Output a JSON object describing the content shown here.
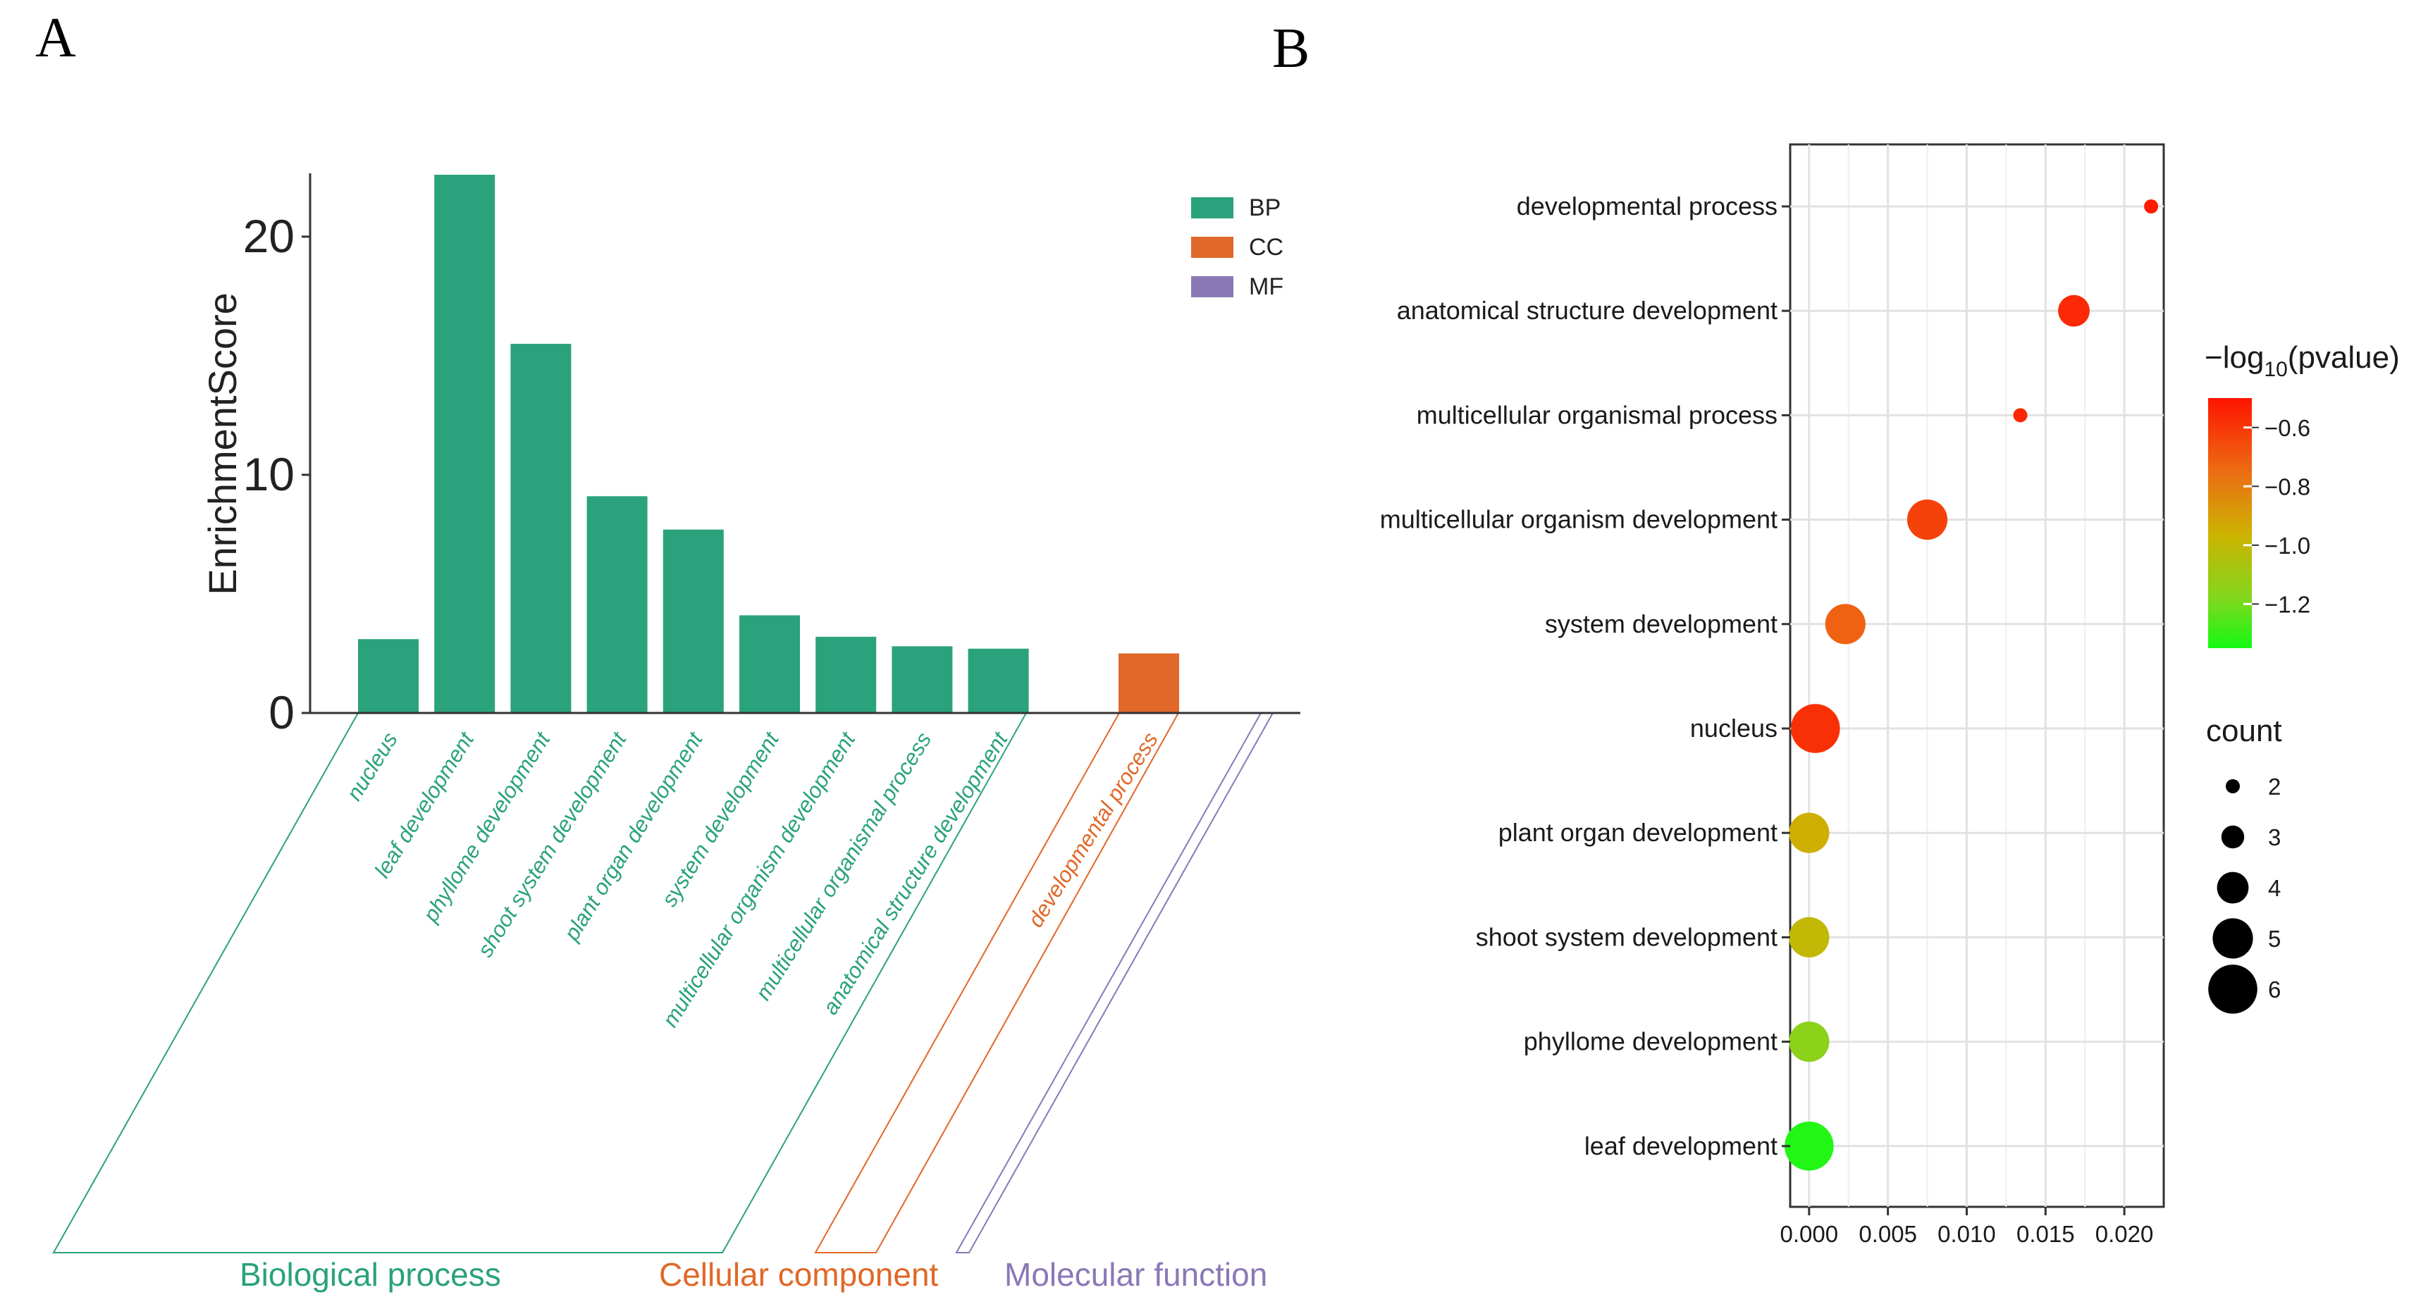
{
  "panels": {
    "a_letter": "A",
    "b_letter": "B"
  },
  "colors": {
    "BP": "#2aa27b",
    "CC": "#e06828",
    "MF": "#8a78b6",
    "axis": "#333333",
    "grid": "#e5e5e5"
  },
  "chart_a": {
    "type": "bar",
    "ylabel": "EnrichmentScore",
    "ylim": [
      0,
      22.6
    ],
    "yticks": [
      "0",
      "10",
      "20"
    ],
    "yticks_values": [
      0,
      10,
      20
    ],
    "legend": [
      {
        "key": "BP",
        "label": "BP"
      },
      {
        "key": "CC",
        "label": "CC"
      },
      {
        "key": "MF",
        "label": "MF"
      }
    ],
    "bars": [
      {
        "label": "nucleus",
        "value": 3.1,
        "group": "BP"
      },
      {
        "label": "leaf development",
        "value": 22.6,
        "group": "BP"
      },
      {
        "label": "phyllome development",
        "value": 15.5,
        "group": "BP"
      },
      {
        "label": "shoot system development",
        "value": 9.1,
        "group": "BP"
      },
      {
        "label": "plant organ development",
        "value": 7.7,
        "group": "BP"
      },
      {
        "label": "system development",
        "value": 4.1,
        "group": "BP"
      },
      {
        "label": "multicellular organism development",
        "value": 3.2,
        "group": "BP"
      },
      {
        "label": "multicellular organismal process",
        "value": 2.8,
        "group": "BP"
      },
      {
        "label": "anatomical structure development",
        "value": 2.7,
        "group": "BP"
      },
      {
        "label": "developmental process",
        "value": 2.5,
        "group": "CC"
      }
    ],
    "groups": [
      {
        "key": "BP",
        "label": "Biological process"
      },
      {
        "key": "CC",
        "label": "Cellular component"
      },
      {
        "key": "MF",
        "label": "Molecular function"
      }
    ]
  },
  "chart_b": {
    "type": "scatter",
    "xlim": [
      -0.0012,
      0.0225
    ],
    "xticks": [
      "0.000",
      "0.005",
      "0.010",
      "0.015",
      "0.020"
    ],
    "xticks_values": [
      0.0,
      0.005,
      0.01,
      0.015,
      0.02
    ],
    "color_legend_title_main": "−log",
    "color_legend_title_sub": "10",
    "color_legend_title_tail": "(pvalue)",
    "color_range": [
      -1.35,
      -0.5
    ],
    "color_ticks": [
      "−0.6",
      "−0.8",
      "−1.0",
      "−1.2"
    ],
    "color_ticks_values": [
      -0.6,
      -0.8,
      -1.0,
      -1.2
    ],
    "size_legend_title": "count",
    "size_legend": [
      "2",
      "3",
      "4",
      "5",
      "6"
    ],
    "size_legend_values": [
      2,
      3,
      4,
      5,
      6
    ],
    "points": [
      {
        "term": "developmental process",
        "x": 0.0217,
        "count": 2,
        "log_p": -0.52
      },
      {
        "term": "anatomical structure development",
        "x": 0.0168,
        "count": 4,
        "log_p": -0.56
      },
      {
        "term": "multicellular organismal process",
        "x": 0.0134,
        "count": 2,
        "log_p": -0.55
      },
      {
        "term": "multicellular organism development",
        "x": 0.0075,
        "count": 5,
        "log_p": -0.63
      },
      {
        "term": "system development",
        "x": 0.0023,
        "count": 5,
        "log_p": -0.72
      },
      {
        "term": "nucleus",
        "x": 0.0004,
        "count": 6,
        "log_p": -0.58
      },
      {
        "term": "plant organ development",
        "x": 0.0,
        "count": 5,
        "log_p": -0.95
      },
      {
        "term": "shoot system development",
        "x": 0.0,
        "count": 5,
        "log_p": -1.0
      },
      {
        "term": "phyllome development",
        "x": 0.0,
        "count": 5,
        "log_p": -1.15
      },
      {
        "term": "leaf development",
        "x": 0.0,
        "count": 6,
        "log_p": -1.33
      }
    ]
  }
}
